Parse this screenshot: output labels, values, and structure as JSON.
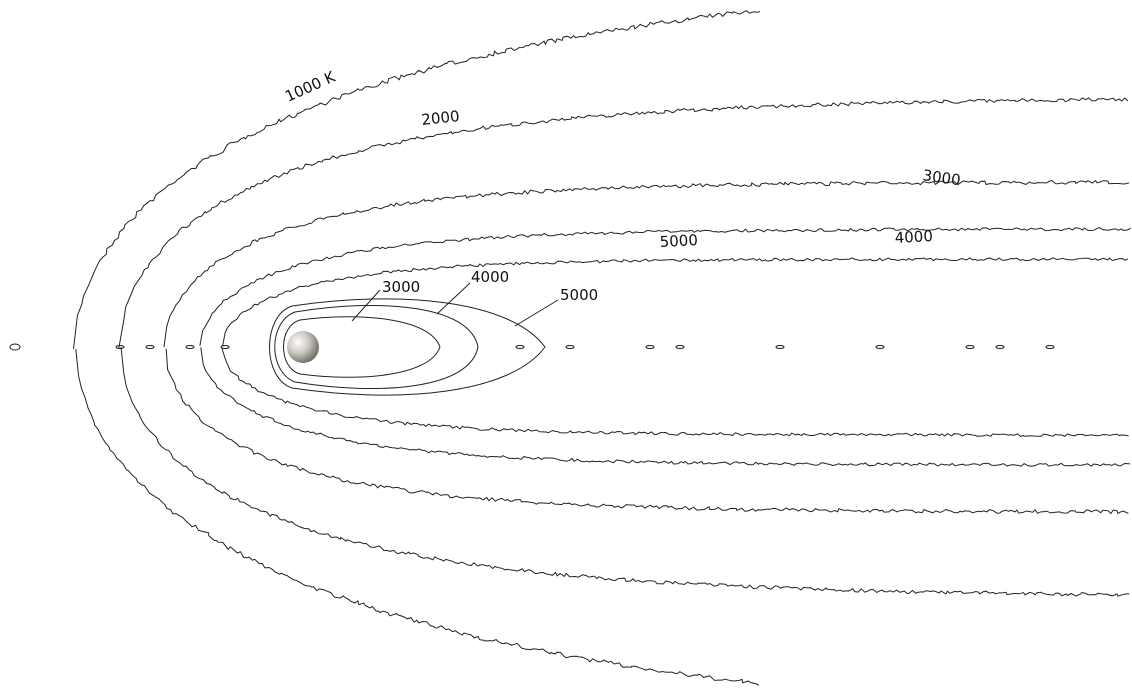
{
  "contour_labels": {
    "outer": [
      "1000 K",
      "2000",
      "3000",
      "4000",
      "5000"
    ],
    "inner": [
      "3000",
      "4000",
      "5000"
    ]
  }
}
